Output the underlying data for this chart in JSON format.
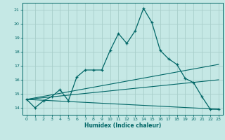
{
  "xlabel": "Humidex (Indice chaleur)",
  "background_color": "#c5e8e5",
  "grid_color": "#a8ceca",
  "line_color": "#006666",
  "xlim": [
    -0.5,
    23.5
  ],
  "ylim": [
    13.5,
    21.5
  ],
  "yticks": [
    14,
    15,
    16,
    17,
    18,
    19,
    20,
    21
  ],
  "xticks": [
    0,
    1,
    2,
    3,
    4,
    5,
    6,
    7,
    8,
    9,
    10,
    11,
    12,
    13,
    14,
    15,
    16,
    17,
    18,
    19,
    20,
    21,
    22,
    23
  ],
  "curve1_x": [
    0,
    1,
    2,
    3,
    4,
    5,
    6,
    7,
    8,
    9,
    10,
    11,
    12,
    13,
    14,
    15,
    16,
    17,
    18,
    19,
    20,
    21,
    22,
    23
  ],
  "curve1_y": [
    14.6,
    14.0,
    14.5,
    14.8,
    15.3,
    14.5,
    16.2,
    16.7,
    16.7,
    16.7,
    18.1,
    19.3,
    18.6,
    19.5,
    21.1,
    20.1,
    18.1,
    17.5,
    17.1,
    16.1,
    15.8,
    14.8,
    13.9,
    13.9
  ],
  "line2_x": [
    0,
    23
  ],
  "line2_y": [
    14.6,
    17.1
  ],
  "line3_x": [
    0,
    23
  ],
  "line3_y": [
    14.6,
    16.0
  ],
  "line4_x": [
    0,
    23
  ],
  "line4_y": [
    14.6,
    13.9
  ]
}
